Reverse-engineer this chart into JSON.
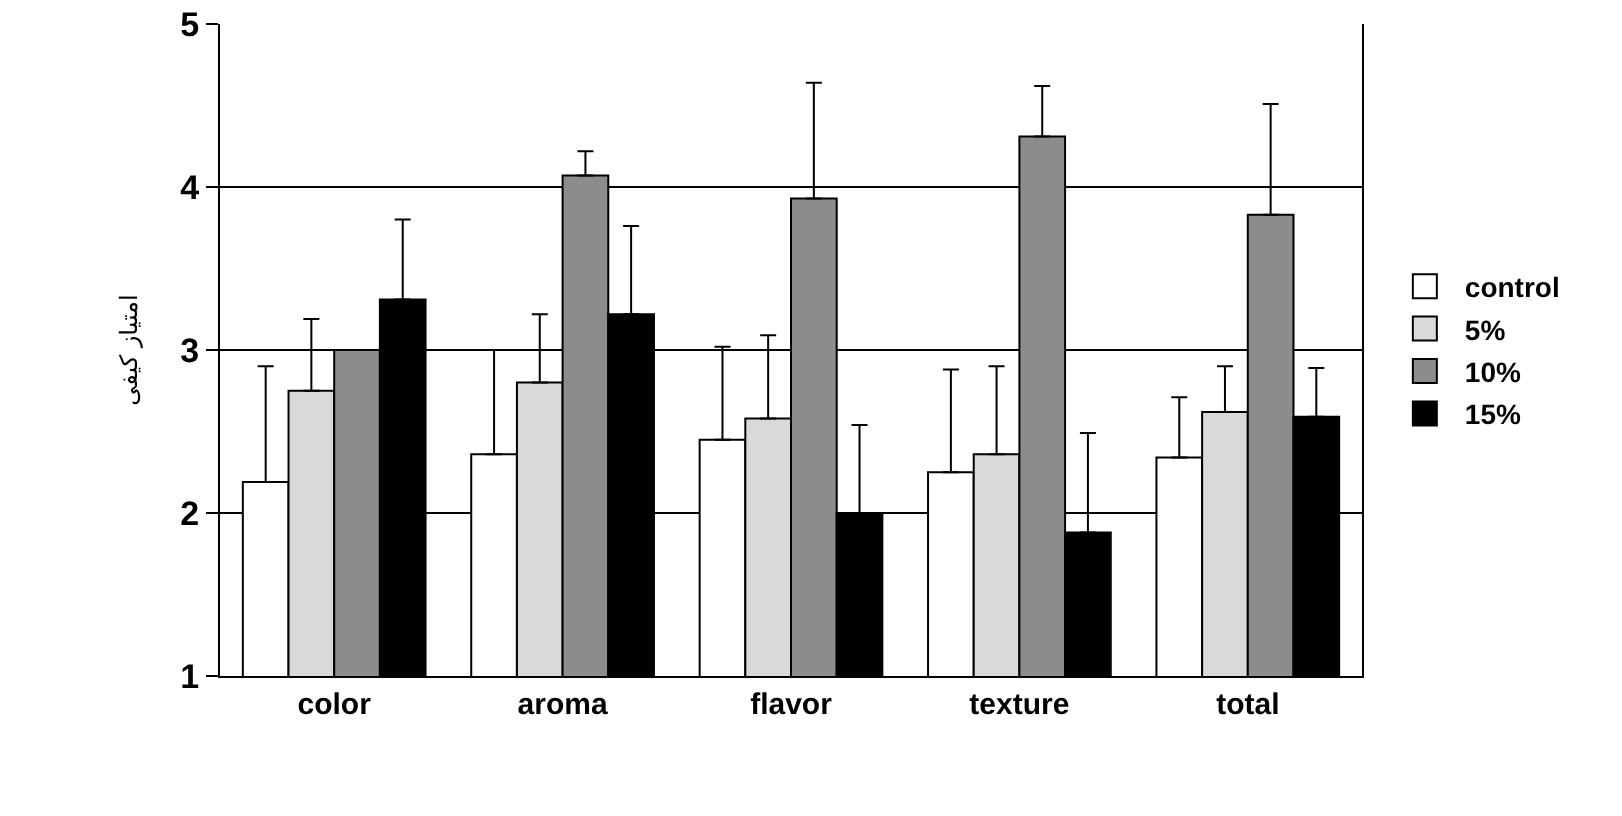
{
  "chart_data": {
    "type": "bar",
    "ylabel": "امتیاز کیفی",
    "categories": [
      "color",
      "aroma",
      "flavor",
      "texture",
      "total"
    ],
    "series": [
      {
        "name": "control",
        "color": "#ffffff",
        "values": [
          2.19,
          2.36,
          2.45,
          2.25,
          2.34
        ],
        "errors": [
          [
            2.19,
            2.9
          ],
          [
            2.36,
            3.0
          ],
          [
            2.45,
            3.02
          ],
          [
            2.25,
            2.88
          ],
          [
            2.34,
            2.71
          ]
        ]
      },
      {
        "name": "5%",
        "color": "#d9d9d9",
        "values": [
          2.75,
          2.8,
          2.58,
          2.36,
          2.62
        ],
        "errors": [
          [
            2.75,
            3.19
          ],
          [
            2.8,
            3.22
          ],
          [
            2.58,
            3.09
          ],
          [
            2.36,
            2.9
          ],
          [
            2.62,
            2.9
          ]
        ]
      },
      {
        "name": "10%",
        "color": "#8c8c8c",
        "values": [
          3.0,
          4.07,
          3.93,
          4.31,
          3.83
        ],
        "errors": [
          null,
          [
            4.07,
            4.22
          ],
          [
            3.93,
            4.64
          ],
          [
            4.31,
            4.62
          ],
          [
            3.83,
            4.51
          ]
        ]
      },
      {
        "name": "15%",
        "color": "#000000",
        "values": [
          3.31,
          3.22,
          2.0,
          1.88,
          2.59
        ],
        "errors": [
          [
            3.31,
            3.8
          ],
          [
            3.22,
            3.76
          ],
          [
            2.0,
            2.54
          ],
          [
            1.88,
            2.49
          ],
          [
            2.59,
            2.89
          ]
        ]
      }
    ],
    "ylim": [
      1,
      5
    ],
    "yticks": [
      1,
      2,
      3,
      4,
      5
    ],
    "grid": "y",
    "legend": "right"
  }
}
